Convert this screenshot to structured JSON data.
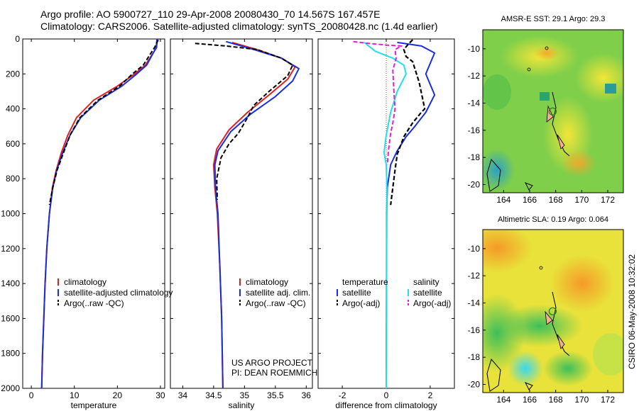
{
  "header": {
    "title_line1": "Argo profile: AO 5900727_110 29-Apr-2008 20080430_70 14.567S 167.457E",
    "title_line2": "Climatology: CARS2006. Satellite-adjusted climatology: synTS_20080428.nc (1.4d earlier)"
  },
  "side_stamp": "CSIRO 06-May-2008 10:32:02",
  "colors": {
    "climatology": "#e02020",
    "satellite": "#1a2ee0",
    "argo": "#000000",
    "sat_salinity": "#20e0e8",
    "argo_salinity": "#e020d8"
  },
  "chart_data": [
    {
      "type": "line",
      "panel": "temperature",
      "xlabel": "temperature",
      "ylabel": "",
      "xlim": [
        -2,
        31
      ],
      "ylim": [
        2000,
        0
      ],
      "xticks": [
        0,
        10,
        20,
        30
      ],
      "xtick_labels": [
        "0",
        "10",
        "20",
        "30"
      ],
      "yticks": [
        0,
        200,
        400,
        600,
        800,
        1000,
        1200,
        1400,
        1600,
        1800,
        2000
      ],
      "ytick_labels": [
        "0",
        "200",
        "400",
        "600",
        "800",
        "1000",
        "1200",
        "1400",
        "1600",
        "1800",
        "2000"
      ],
      "legend": [
        "climatology",
        "satellite-adjusted climatology",
        "Argo(..raw -QC)"
      ],
      "legend_position": "lower-right",
      "series": [
        {
          "name": "climatology",
          "points": [
            [
              29.3,
              0
            ],
            [
              29.1,
              50
            ],
            [
              26.5,
              150
            ],
            [
              24,
              200
            ],
            [
              20,
              270
            ],
            [
              14.5,
              350
            ],
            [
              10.5,
              450
            ],
            [
              8.5,
              550
            ],
            [
              7,
              650
            ],
            [
              5.8,
              750
            ],
            [
              4.9,
              850
            ],
            [
              4.2,
              1000
            ],
            [
              3.6,
              1200
            ],
            [
              3.2,
              1400
            ],
            [
              2.9,
              1600
            ],
            [
              2.6,
              1800
            ],
            [
              2.4,
              2000
            ]
          ]
        },
        {
          "name": "satellite-adjusted climatology",
          "points": [
            [
              29.2,
              0
            ],
            [
              29.0,
              50
            ],
            [
              26.8,
              150
            ],
            [
              24.5,
              200
            ],
            [
              21,
              270
            ],
            [
              15.8,
              350
            ],
            [
              11.5,
              450
            ],
            [
              9,
              550
            ],
            [
              7.3,
              650
            ],
            [
              5.9,
              750
            ],
            [
              5,
              850
            ],
            [
              4.2,
              1000
            ],
            [
              3.6,
              1200
            ],
            [
              3.2,
              1400
            ],
            [
              2.9,
              1600
            ],
            [
              2.6,
              1800
            ],
            [
              2.4,
              2000
            ]
          ]
        },
        {
          "name": "Argo(..raw -QC)",
          "points": [
            [
              29.5,
              5
            ],
            [
              28.6,
              50
            ],
            [
              26,
              150
            ],
            [
              23.5,
              200
            ],
            [
              20.5,
              270
            ],
            [
              15.5,
              350
            ],
            [
              11.3,
              450
            ],
            [
              9,
              550
            ],
            [
              7.5,
              650
            ],
            [
              6,
              750
            ],
            [
              5,
              850
            ],
            [
              4.2,
              950
            ]
          ]
        }
      ]
    },
    {
      "type": "line",
      "panel": "salinity",
      "xlabel": "salinity",
      "ylabel": "",
      "xlim": [
        33.8,
        36.1
      ],
      "ylim": [
        2000,
        0
      ],
      "xticks": [
        34,
        34.5,
        35,
        35.5,
        36
      ],
      "xtick_labels": [
        "34",
        "34.5",
        "35",
        "35.5",
        "36"
      ],
      "legend": [
        "climatology",
        "satellite adj. clim.",
        "Argo(..raw -QC)"
      ],
      "legend_position": "lower-right",
      "annotation": [
        "US ARGO PROJECT",
        "PI: DEAN ROEMMICH"
      ],
      "series": [
        {
          "name": "climatology",
          "points": [
            [
              34.8,
              20
            ],
            [
              35.2,
              60
            ],
            [
              35.6,
              110
            ],
            [
              35.82,
              160
            ],
            [
              35.7,
              230
            ],
            [
              35.4,
              320
            ],
            [
              35.05,
              420
            ],
            [
              34.75,
              520
            ],
            [
              34.55,
              630
            ],
            [
              34.5,
              720
            ],
            [
              34.52,
              850
            ],
            [
              34.56,
              1000
            ],
            [
              34.6,
              1300
            ],
            [
              34.63,
              1600
            ],
            [
              34.65,
              2000
            ]
          ]
        },
        {
          "name": "satellite adj. clim.",
          "points": [
            [
              34.7,
              15
            ],
            [
              35.15,
              60
            ],
            [
              35.6,
              110
            ],
            [
              35.88,
              170
            ],
            [
              35.78,
              240
            ],
            [
              35.5,
              330
            ],
            [
              35.1,
              430
            ],
            [
              34.78,
              530
            ],
            [
              34.57,
              640
            ],
            [
              34.52,
              720
            ],
            [
              34.53,
              850
            ],
            [
              34.57,
              1000
            ],
            [
              34.6,
              1300
            ],
            [
              34.63,
              1600
            ],
            [
              34.65,
              2000
            ]
          ]
        },
        {
          "name": "Argo(..raw -QC)",
          "points": [
            [
              34.2,
              25
            ],
            [
              34.7,
              40
            ],
            [
              35.2,
              60
            ],
            [
              35.6,
              110
            ],
            [
              35.78,
              150
            ],
            [
              35.7,
              210
            ],
            [
              35.4,
              300
            ],
            [
              35.15,
              380
            ],
            [
              35.05,
              450
            ],
            [
              34.9,
              540
            ],
            [
              34.75,
              600
            ],
            [
              34.62,
              680
            ],
            [
              34.55,
              800
            ],
            [
              34.56,
              920
            ]
          ]
        }
      ]
    },
    {
      "type": "line",
      "panel": "difference",
      "xlabel": "difference from climatology",
      "ylabel": "",
      "xlim": [
        -3.1,
        3.1
      ],
      "ylim": [
        2000,
        0
      ],
      "xticks": [
        -2,
        0,
        2
      ],
      "xtick_labels": [
        "-2",
        "0",
        "2"
      ],
      "legend": [
        "temperature",
        "satellite",
        "Argo(-adj)",
        "salinity",
        "satellite",
        "Argo(-adj)"
      ],
      "legend_position": "lower",
      "series": [
        {
          "name": "temperature satellite",
          "points": [
            [
              0.5,
              20
            ],
            [
              1.6,
              40
            ],
            [
              2.2,
              80
            ],
            [
              1.8,
              200
            ],
            [
              2.2,
              320
            ],
            [
              1.8,
              420
            ],
            [
              1.3,
              500
            ],
            [
              0.9,
              560
            ],
            [
              0.5,
              640
            ],
            [
              0.2,
              720
            ],
            [
              0.05,
              850
            ],
            [
              0.02,
              1000
            ],
            [
              0,
              2000
            ]
          ]
        },
        {
          "name": "temperature Argo(-adj)",
          "points": [
            [
              1.2,
              5
            ],
            [
              1.0,
              30
            ],
            [
              0.8,
              60
            ],
            [
              0.9,
              100
            ],
            [
              1.2,
              130
            ],
            [
              1.5,
              250
            ],
            [
              1.75,
              400
            ],
            [
              1.6,
              420
            ],
            [
              1.2,
              480
            ],
            [
              0.8,
              560
            ],
            [
              0.5,
              660
            ],
            [
              0.4,
              750
            ],
            [
              0.3,
              850
            ],
            [
              0.2,
              950
            ]
          ]
        },
        {
          "name": "salinity satellite",
          "points": [
            [
              -1,
              20
            ],
            [
              -0.5,
              70
            ],
            [
              0.3,
              110
            ],
            [
              0.8,
              150
            ],
            [
              0.9,
              200
            ],
            [
              0.5,
              300
            ],
            [
              0.2,
              420
            ],
            [
              0,
              550
            ],
            [
              -0.1,
              650
            ],
            [
              0,
              720
            ],
            [
              0.03,
              850
            ],
            [
              0,
              2000
            ]
          ]
        },
        {
          "name": "salinity Argo(-adj)",
          "points": [
            [
              -1.5,
              15
            ],
            [
              -0.8,
              25
            ],
            [
              0,
              35
            ],
            [
              0.7,
              40
            ],
            [
              0.4,
              60
            ],
            [
              0.45,
              110
            ],
            [
              0.3,
              180
            ],
            [
              0.35,
              300
            ],
            [
              0.4,
              400
            ],
            [
              0.3,
              480
            ],
            [
              0.2,
              540
            ],
            [
              0.1,
              640
            ],
            [
              0.05,
              720
            ]
          ]
        }
      ]
    },
    {
      "type": "heatmap",
      "panel": "sst-map",
      "title": "AMSR-E SST: 29.1 Argo: 29.3",
      "xlim": [
        162.4,
        173.2
      ],
      "ylim": [
        -20.6,
        -8.6
      ],
      "xticks": [
        164,
        166,
        168,
        170,
        172
      ],
      "xtick_labels": [
        "164",
        "166",
        "168",
        "170",
        "172"
      ],
      "yticks": [
        -10,
        -12,
        -14,
        -16,
        -18,
        -20
      ],
      "ytick_labels": [
        "-10",
        "-12",
        "-14",
        "-16",
        "-18",
        "-20"
      ],
      "marker": {
        "lon": 167.457,
        "lat": -14.567
      }
    },
    {
      "type": "heatmap",
      "panel": "sla-map",
      "title": "Altimetric SLA: 0.19 Argo: 0.064",
      "xlim": [
        162.4,
        173.2
      ],
      "ylim": [
        -20.6,
        -8.6
      ],
      "xticks": [
        164,
        166,
        168,
        170,
        172
      ],
      "xtick_labels": [
        "164",
        "166",
        "168",
        "170",
        "172"
      ],
      "yticks": [
        -10,
        -12,
        -14,
        -16,
        -18,
        -20
      ],
      "ytick_labels": [
        "-10",
        "-12",
        "-14",
        "-16",
        "-18",
        "-20"
      ],
      "marker": {
        "lon": 167.457,
        "lat": -14.567
      }
    }
  ]
}
